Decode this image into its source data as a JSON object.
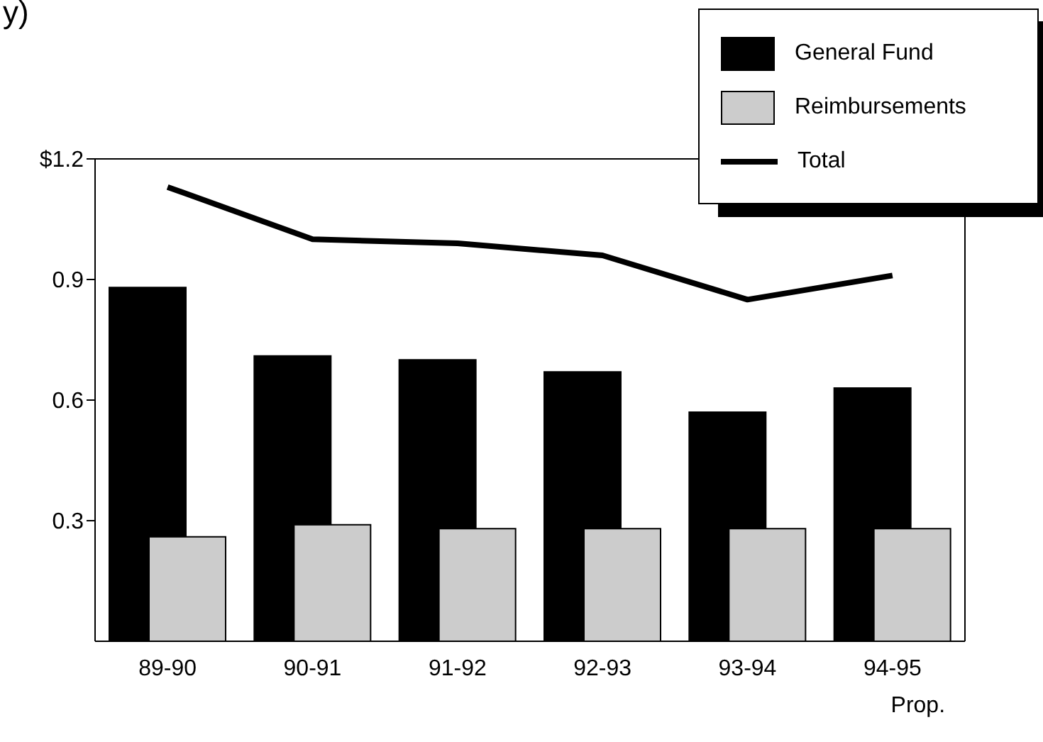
{
  "chart_data": {
    "type": "bar",
    "annotations": [
      "y)"
    ],
    "categories": [
      "89-90",
      "90-91",
      "91-92",
      "92-93",
      "93-94",
      "94-95\nProp."
    ],
    "series": [
      {
        "name": "General Fund",
        "color": "#000000",
        "values": [
          0.88,
          0.71,
          0.7,
          0.67,
          0.57,
          0.63
        ]
      },
      {
        "name": "Reimbursements",
        "color": "#cccccc",
        "values": [
          0.26,
          0.29,
          0.28,
          0.28,
          0.28,
          0.28
        ]
      },
      {
        "name": "Total",
        "type": "line",
        "color": "#000000",
        "values": [
          1.13,
          1.0,
          0.99,
          0.96,
          0.85,
          0.91
        ],
        "marker": "none",
        "line_style": "solid"
      }
    ],
    "ylim": [
      0,
      1.2
    ],
    "yticks": [
      {
        "value": 0.3,
        "label": "0.3"
      },
      {
        "value": 0.6,
        "label": "0.6"
      },
      {
        "value": 0.9,
        "label": "0.9"
      },
      {
        "value": 1.2,
        "label": "$1.2"
      }
    ],
    "legend": "top right"
  }
}
